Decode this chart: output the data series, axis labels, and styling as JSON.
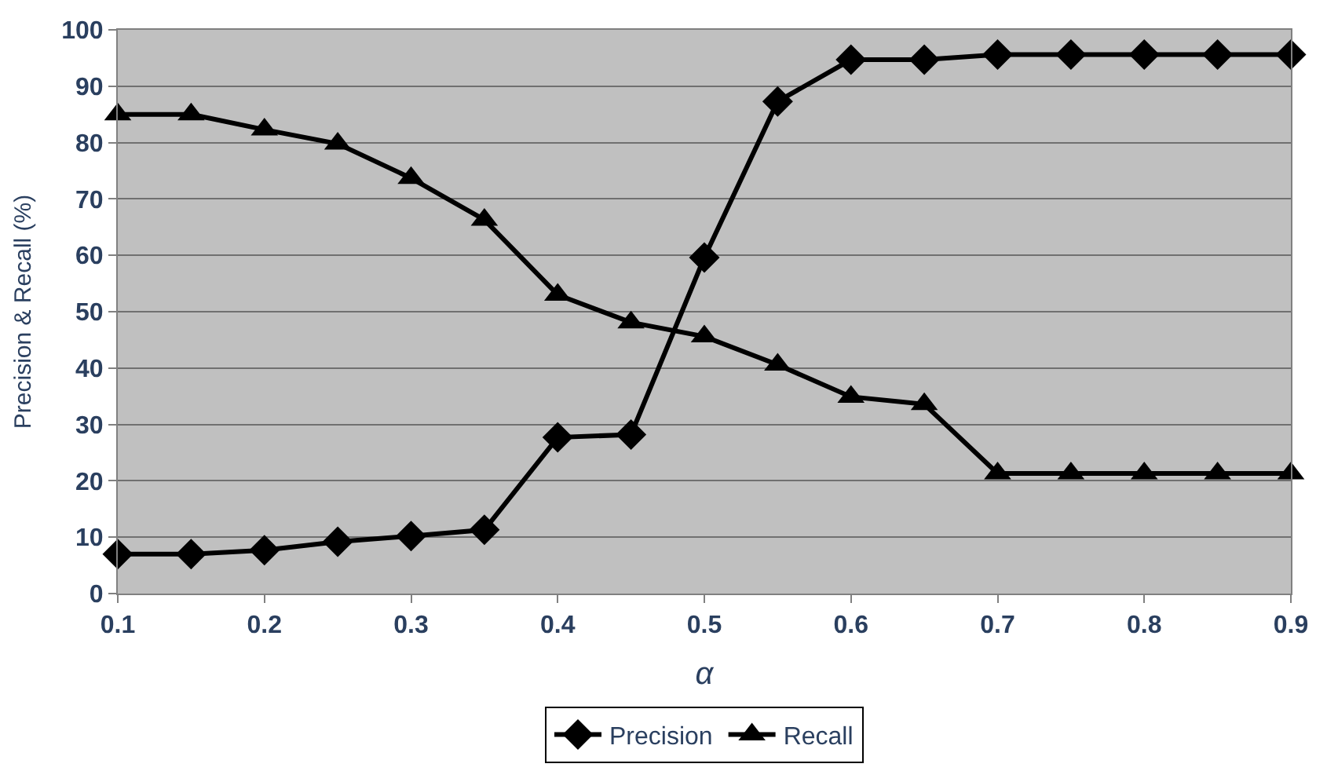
{
  "chart_data": {
    "type": "line",
    "xlabel": "α",
    "ylabel": "Precision & Recall (%)",
    "x": [
      0.1,
      0.15,
      0.2,
      0.25,
      0.3,
      0.35,
      0.4,
      0.45,
      0.5,
      0.55,
      0.6,
      0.65,
      0.7,
      0.75,
      0.8,
      0.85,
      0.9
    ],
    "series": [
      {
        "name": "Precision",
        "color": "#000000",
        "marker": "diamond",
        "values": [
          7,
          7,
          7.7,
          9.2,
          10.2,
          11.3,
          27.7,
          28.2,
          59.6,
          87.3,
          94.7,
          94.7,
          95.6,
          95.6,
          95.6,
          95.6,
          95.6
        ]
      },
      {
        "name": "Recall",
        "color": "#000000",
        "marker": "triangle",
        "values": [
          85,
          85,
          82.3,
          79.8,
          73.7,
          66.3,
          53,
          48.1,
          45.6,
          40.6,
          34.9,
          33.6,
          21.3,
          21.3,
          21.3,
          21.3,
          21.3
        ]
      }
    ],
    "xlim": [
      0.1,
      0.9
    ],
    "xticks": [
      0.1,
      0.2,
      0.3,
      0.4,
      0.5,
      0.6,
      0.7,
      0.8,
      0.9
    ],
    "ylim": [
      0,
      100
    ],
    "yticks": [
      0,
      10,
      20,
      30,
      40,
      50,
      60,
      70,
      80,
      90,
      100
    ],
    "grid": "y",
    "legend": "bottom",
    "line_style": "solid"
  }
}
